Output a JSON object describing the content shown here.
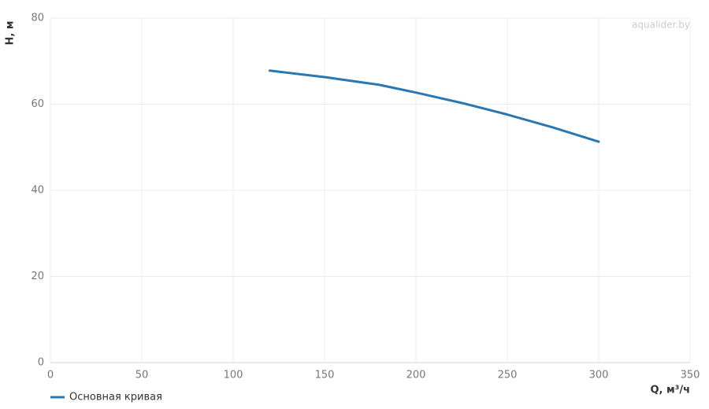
{
  "chart_data": {
    "type": "line",
    "x_label": "Q, м³/ч",
    "y_label": "H, м",
    "watermark": "aqualider.by",
    "x": [
      120,
      150,
      180,
      200,
      225,
      250,
      275,
      300
    ],
    "series": [
      {
        "name": "Основная кривая",
        "color": "#2a78b3",
        "values": [
          67.8,
          66.3,
          64.5,
          62.7,
          60.3,
          57.6,
          54.6,
          51.3
        ]
      }
    ],
    "xlim": [
      0,
      350
    ],
    "xticks": [
      0,
      50,
      100,
      150,
      200,
      250,
      300,
      350
    ],
    "ylim": [
      0,
      80
    ],
    "yticks": [
      0,
      20,
      40,
      60,
      80
    ],
    "grid": true
  }
}
